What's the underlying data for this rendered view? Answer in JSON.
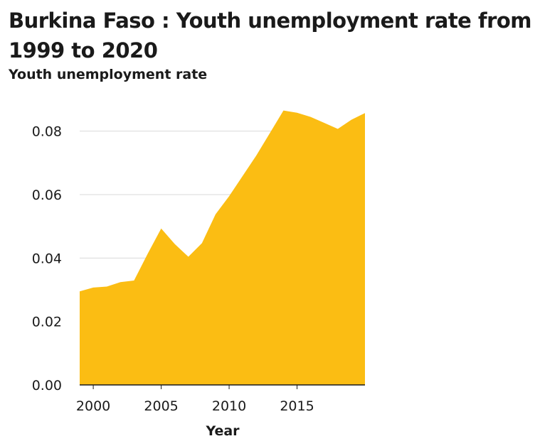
{
  "chart_data": {
    "type": "area",
    "title": "Burkina Faso : Youth unemployment rate from 1999 to 2020",
    "xlabel": "Year",
    "ylabel": "Youth unemployment rate",
    "x": [
      1999,
      2000,
      2001,
      2002,
      2003,
      2004,
      2005,
      2006,
      2007,
      2008,
      2009,
      2010,
      2011,
      2012,
      2013,
      2014,
      2015,
      2016,
      2017,
      2018,
      2019,
      2020
    ],
    "series": [
      {
        "values": [
          0.0295,
          0.0307,
          0.031,
          0.0324,
          0.0329,
          0.0413,
          0.0493,
          0.0444,
          0.0404,
          0.0447,
          0.0538,
          0.0595,
          0.0659,
          0.0723,
          0.0794,
          0.0865,
          0.0858,
          0.0845,
          0.0826,
          0.0807,
          0.0836,
          0.0857
        ],
        "color": "#fbbd13"
      }
    ],
    "xlim": [
      1999,
      2020
    ],
    "ylim": [
      0,
      0.09
    ],
    "xticks": [
      2000,
      2005,
      2010,
      2015
    ],
    "xtick_labels": [
      "2000",
      "2005",
      "2010",
      "2015"
    ],
    "yticks": [
      0,
      0.02,
      0.04,
      0.06,
      0.08
    ],
    "ytick_labels": [
      "0.00",
      "0.02",
      "0.04",
      "0.06",
      "0.08"
    ],
    "grid": "horizontal",
    "gridline_color": "#d9d9d9",
    "axis_color": "#1a1a1a"
  }
}
